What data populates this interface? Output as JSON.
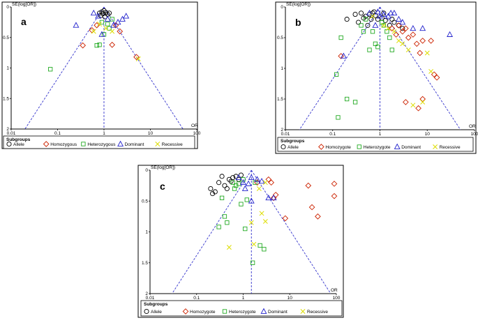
{
  "chart_data": [
    {
      "type": "scatter",
      "panel_label": "a",
      "ylabel": "SE(log[OR])",
      "xlabel": "OR",
      "x_scale": "log",
      "xlim": [
        0.01,
        100
      ],
      "ylim": [
        0,
        2
      ],
      "x_ticks": [
        "0.01",
        "0.1",
        "1",
        "10",
        "100"
      ],
      "y_ticks": [
        "0",
        "0.5",
        "1",
        "1.5",
        "2"
      ],
      "pooled_or": 1.0,
      "legend_title": "Subgroups",
      "series": [
        {
          "name": "Allele",
          "marker": "circle",
          "color": "#000000",
          "points": [
            [
              0.8,
              0.1
            ],
            [
              0.9,
              0.08
            ],
            [
              1.0,
              0.06
            ],
            [
              1.1,
              0.09
            ],
            [
              1.2,
              0.12
            ],
            [
              0.85,
              0.14
            ],
            [
              1.05,
              0.16
            ],
            [
              0.95,
              0.11
            ],
            [
              1.3,
              0.1
            ]
          ]
        },
        {
          "name": "Homozygous",
          "marker": "diamond",
          "color": "#cc2200",
          "points": [
            [
              0.35,
              0.63
            ],
            [
              0.55,
              0.38
            ],
            [
              0.7,
              0.3
            ],
            [
              1.5,
              0.62
            ],
            [
              2.2,
              0.4
            ],
            [
              5.0,
              0.82
            ],
            [
              1.8,
              0.3
            ]
          ]
        },
        {
          "name": "Heterozygous",
          "marker": "square",
          "color": "#22aa22",
          "points": [
            [
              0.07,
              1.02
            ],
            [
              0.7,
              0.63
            ],
            [
              0.8,
              0.62
            ],
            [
              1.0,
              0.45
            ],
            [
              1.3,
              0.35
            ],
            [
              1.5,
              0.2
            ],
            [
              0.9,
              0.25
            ],
            [
              1.2,
              0.28
            ]
          ]
        },
        {
          "name": "Dominant",
          "marker": "triangle",
          "color": "#2222cc",
          "points": [
            [
              0.25,
              0.3
            ],
            [
              0.6,
              0.1
            ],
            [
              0.75,
              0.15
            ],
            [
              0.9,
              0.45
            ],
            [
              1.2,
              0.2
            ],
            [
              1.6,
              0.3
            ],
            [
              2.0,
              0.25
            ],
            [
              2.5,
              0.2
            ],
            [
              3.0,
              0.15
            ]
          ]
        },
        {
          "name": "Recessive",
          "marker": "cross",
          "color": "#dddd00",
          "points": [
            [
              0.6,
              0.4
            ],
            [
              0.8,
              0.28
            ],
            [
              1.1,
              0.35
            ],
            [
              1.5,
              0.4
            ],
            [
              5.5,
              0.85
            ]
          ]
        }
      ]
    },
    {
      "type": "scatter",
      "panel_label": "b",
      "ylabel": "SE(log[OR])",
      "xlabel": "OR",
      "x_scale": "log",
      "xlim": [
        0.01,
        100
      ],
      "ylim": [
        0,
        2
      ],
      "x_ticks": [
        "0.01",
        "0.1",
        "1",
        "10",
        "100"
      ],
      "y_ticks": [
        "0",
        "0.5",
        "1",
        "1.5",
        "2"
      ],
      "pooled_or": 1.0,
      "legend_title": "Subgroups",
      "series": [
        {
          "name": "Allele",
          "marker": "circle",
          "color": "#000000",
          "points": [
            [
              0.2,
              0.2
            ],
            [
              0.3,
              0.12
            ],
            [
              0.4,
              0.1
            ],
            [
              0.5,
              0.15
            ],
            [
              0.6,
              0.12
            ],
            [
              0.7,
              0.1
            ],
            [
              0.8,
              0.14
            ],
            [
              0.9,
              0.2
            ],
            [
              1.1,
              0.18
            ],
            [
              1.3,
              0.22
            ],
            [
              1.6,
              0.3
            ],
            [
              2.0,
              0.25
            ],
            [
              2.5,
              0.3
            ],
            [
              0.35,
              0.25
            ],
            [
              0.55,
              0.3
            ],
            [
              0.45,
              0.18
            ],
            [
              0.65,
              0.2
            ],
            [
              0.75,
              0.08
            ],
            [
              1.2,
              0.1
            ],
            [
              1.8,
              0.2
            ],
            [
              3.0,
              0.35
            ]
          ]
        },
        {
          "name": "Homozygote",
          "marker": "diamond",
          "color": "#cc2200",
          "points": [
            [
              0.15,
              0.8
            ],
            [
              2.5,
              0.3
            ],
            [
              3.0,
              0.4
            ],
            [
              3.5,
              0.35
            ],
            [
              4.0,
              0.5
            ],
            [
              5.0,
              0.45
            ],
            [
              6.0,
              0.6
            ],
            [
              7.0,
              0.75
            ],
            [
              8.0,
              0.55
            ],
            [
              12.0,
              0.55
            ],
            [
              14.0,
              1.1
            ],
            [
              16.0,
              1.15
            ],
            [
              6.5,
              1.65
            ],
            [
              3.5,
              1.55
            ],
            [
              8.0,
              1.5
            ],
            [
              2.2,
              0.45
            ],
            [
              1.8,
              0.35
            ]
          ]
        },
        {
          "name": "Heterozygote",
          "marker": "square",
          "color": "#22aa22",
          "points": [
            [
              0.12,
              1.1
            ],
            [
              0.13,
              1.8
            ],
            [
              0.2,
              1.5
            ],
            [
              0.3,
              1.55
            ],
            [
              0.4,
              0.3
            ],
            [
              0.5,
              0.2
            ],
            [
              0.6,
              0.7
            ],
            [
              0.7,
              0.4
            ],
            [
              0.8,
              0.6
            ],
            [
              0.9,
              0.65
            ],
            [
              1.2,
              0.3
            ],
            [
              1.4,
              0.4
            ],
            [
              1.6,
              0.5
            ],
            [
              1.8,
              0.7
            ],
            [
              0.15,
              0.5
            ],
            [
              0.45,
              0.4
            ],
            [
              1.1,
              0.25
            ]
          ]
        },
        {
          "name": "Dominant",
          "marker": "triangle",
          "color": "#2222cc",
          "points": [
            [
              0.17,
              0.8
            ],
            [
              0.6,
              0.1
            ],
            [
              0.8,
              0.3
            ],
            [
              1.0,
              0.15
            ],
            [
              1.2,
              0.12
            ],
            [
              1.5,
              0.15
            ],
            [
              2.0,
              0.1
            ],
            [
              2.5,
              0.2
            ],
            [
              3.0,
              0.25
            ],
            [
              5.0,
              0.35
            ],
            [
              8.0,
              0.35
            ],
            [
              30.0,
              0.45
            ],
            [
              1.7,
              0.1
            ],
            [
              0.9,
              0.08
            ]
          ]
        },
        {
          "name": "Recessive",
          "marker": "cross",
          "color": "#dddd00",
          "points": [
            [
              0.7,
              0.15
            ],
            [
              1.2,
              0.3
            ],
            [
              1.5,
              0.35
            ],
            [
              2.0,
              0.4
            ],
            [
              2.5,
              0.55
            ],
            [
              3.0,
              0.6
            ],
            [
              4.0,
              0.7
            ],
            [
              10.0,
              0.75
            ],
            [
              12.0,
              1.05
            ],
            [
              8.0,
              1.55
            ],
            [
              5.0,
              1.6
            ]
          ]
        }
      ]
    },
    {
      "type": "scatter",
      "panel_label": "c",
      "ylabel": "SE(log[OR])",
      "xlabel": "OR",
      "x_scale": "log",
      "xlim": [
        0.01,
        100
      ],
      "ylim": [
        0,
        2
      ],
      "x_ticks": [
        "0.01",
        "0.1",
        "1",
        "10",
        "100"
      ],
      "y_ticks": [
        "0",
        "0.5",
        "1",
        "1.5",
        "2"
      ],
      "pooled_or": 1.5,
      "legend_title": "Subgroups",
      "series": [
        {
          "name": "Allele",
          "marker": "circle",
          "color": "#000000",
          "points": [
            [
              0.2,
              0.3
            ],
            [
              0.25,
              0.35
            ],
            [
              0.3,
              0.2
            ],
            [
              0.4,
              0.25
            ],
            [
              0.5,
              0.15
            ],
            [
              0.6,
              0.12
            ],
            [
              0.7,
              0.1
            ],
            [
              0.8,
              0.15
            ],
            [
              0.9,
              0.08
            ],
            [
              0.35,
              0.1
            ],
            [
              0.45,
              0.3
            ],
            [
              0.55,
              0.18
            ],
            [
              0.22,
              0.38
            ]
          ]
        },
        {
          "name": "Homozygote",
          "marker": "diamond",
          "color": "#cc2200",
          "points": [
            [
              3.5,
              0.15
            ],
            [
              4.0,
              0.2
            ],
            [
              4.5,
              0.45
            ],
            [
              5.0,
              0.4
            ],
            [
              8.0,
              0.78
            ],
            [
              25.0,
              0.25
            ],
            [
              30.0,
              0.6
            ],
            [
              40.0,
              0.75
            ],
            [
              95.0,
              0.42
            ],
            [
              100.0,
              0.22
            ],
            [
              2.0,
              0.2
            ]
          ]
        },
        {
          "name": "Heterozygote",
          "marker": "square",
          "color": "#22aa22",
          "points": [
            [
              0.3,
              0.92
            ],
            [
              0.35,
              0.45
            ],
            [
              0.4,
              0.75
            ],
            [
              0.45,
              0.85
            ],
            [
              0.6,
              0.2
            ],
            [
              0.65,
              0.3
            ],
            [
              0.7,
              0.25
            ],
            [
              0.9,
              0.55
            ],
            [
              1.0,
              0.15
            ],
            [
              1.8,
              0.2
            ],
            [
              2.3,
              1.22
            ],
            [
              2.8,
              1.28
            ],
            [
              1.6,
              1.5
            ],
            [
              1.1,
              0.95
            ],
            [
              1.2,
              0.48
            ],
            [
              0.8,
              0.22
            ]
          ]
        },
        {
          "name": "Dominant",
          "marker": "triangle",
          "color": "#2222cc",
          "points": [
            [
              0.8,
              0.12
            ],
            [
              1.0,
              0.2
            ],
            [
              1.3,
              0.22
            ],
            [
              1.5,
              0.12
            ],
            [
              2.0,
              0.15
            ],
            [
              2.5,
              0.18
            ],
            [
              1.5,
              0.5
            ],
            [
              3.5,
              0.45
            ],
            [
              4.5,
              0.45
            ],
            [
              1.1,
              0.3
            ]
          ]
        },
        {
          "name": "Recessive",
          "marker": "cross",
          "color": "#dddd00",
          "points": [
            [
              0.5,
              1.25
            ],
            [
              1.5,
              0.85
            ],
            [
              1.7,
              1.2
            ],
            [
              2.5,
              0.7
            ],
            [
              3.0,
              0.83
            ],
            [
              3.0,
              0.2
            ],
            [
              2.2,
              0.3
            ]
          ]
        }
      ]
    }
  ]
}
